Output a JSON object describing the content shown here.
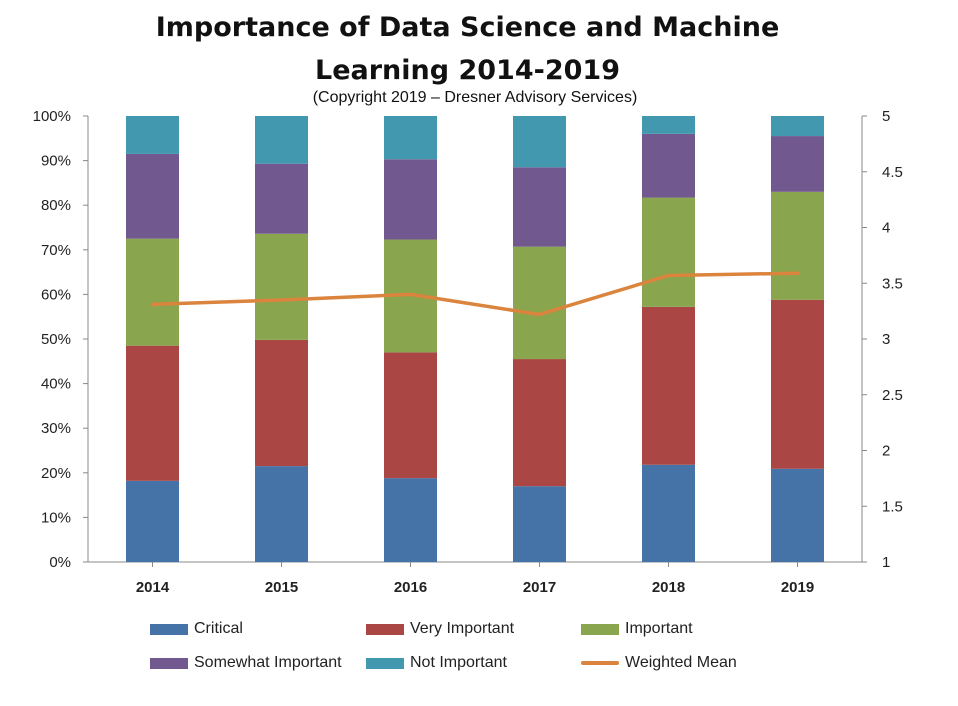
{
  "chart_data": {
    "type": "bar",
    "stacked": true,
    "title_line1": "Importance of Data Science and Machine",
    "title_line2": "Learning 2014-2019",
    "subtitle": "(Copyright 2019 – Dresner Advisory Services)",
    "categories": [
      "2014",
      "2015",
      "2016",
      "2017",
      "2018",
      "2019"
    ],
    "ylim_left": [
      0,
      100
    ],
    "ylim_right": [
      1,
      5
    ],
    "left_ticks": [
      "0%",
      "10%",
      "20%",
      "30%",
      "40%",
      "50%",
      "60%",
      "70%",
      "80%",
      "90%",
      "100%"
    ],
    "right_ticks": [
      "1",
      "1.5",
      "2",
      "2.5",
      "3",
      "3.5",
      "4",
      "4.5",
      "5"
    ],
    "grid": false,
    "legend_position": "bottom",
    "series": [
      {
        "name": "Critical",
        "color": "#4572a7",
        "values": [
          18.2,
          21.5,
          18.8,
          17.0,
          21.8,
          20.9
        ]
      },
      {
        "name": "Very Important",
        "color": "#aa4643",
        "values": [
          30.3,
          28.3,
          28.2,
          28.5,
          35.4,
          37.9
        ]
      },
      {
        "name": "Important",
        "color": "#89a54e",
        "values": [
          24.0,
          23.8,
          25.3,
          25.2,
          24.5,
          24.2
        ]
      },
      {
        "name": "Somewhat Important",
        "color": "#71588f",
        "values": [
          19.0,
          15.7,
          18.0,
          17.8,
          14.3,
          12.5
        ]
      },
      {
        "name": "Not Important",
        "color": "#4198af",
        "values": [
          8.5,
          10.7,
          9.7,
          11.5,
          4.0,
          4.5
        ]
      }
    ],
    "line_series": {
      "name": "Weighted Mean",
      "color": "#db843d",
      "axis": "right",
      "values": [
        3.31,
        3.35,
        3.4,
        3.22,
        3.57,
        3.59
      ]
    }
  }
}
